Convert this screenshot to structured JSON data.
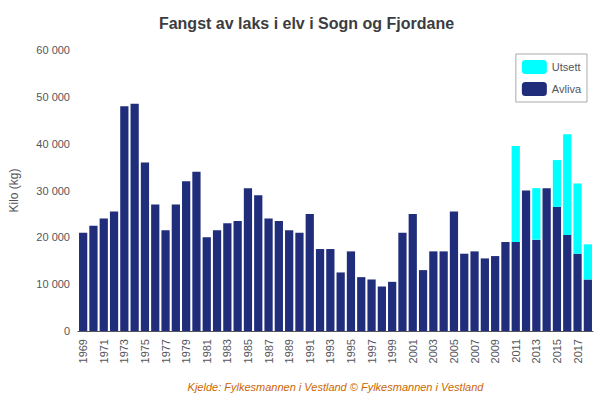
{
  "chart_data": {
    "type": "bar",
    "title": "Fangst av laks i elv i Sogn og Fjordane",
    "ylabel": "Kilo (kg)",
    "xlabel": "Kjelde: Fylkesmannen i Vestland © Fylkesmannen i Vestland",
    "categories": [
      "1969",
      null,
      "1971",
      null,
      "1973",
      null,
      "1975",
      null,
      "1977",
      null,
      "1979",
      null,
      "1981",
      null,
      "1983",
      null,
      "1985",
      null,
      "1987",
      null,
      "1989",
      null,
      "1991",
      null,
      "1993",
      null,
      "1995",
      null,
      "1997",
      null,
      "1999",
      null,
      "2001",
      null,
      "2003",
      null,
      "2005",
      null,
      "2007",
      null,
      "2009",
      null,
      "2011",
      null,
      "2013",
      null,
      "2015",
      null,
      "2017",
      null
    ],
    "series": [
      {
        "name": "Avliva",
        "color": "#1F2D7B",
        "values": [
          21000,
          22500,
          24000,
          25500,
          48000,
          48500,
          36000,
          27000,
          21500,
          27000,
          32000,
          34000,
          20000,
          21500,
          23000,
          23500,
          30500,
          29000,
          24000,
          23500,
          21500,
          21000,
          25000,
          17500,
          17500,
          12500,
          17000,
          11500,
          11000,
          9500,
          10500,
          21000,
          25000,
          13000,
          17000,
          17000,
          25500,
          16500,
          17000,
          15500,
          16000,
          19000,
          19000,
          30000,
          19500,
          30500,
          26500,
          20500,
          16500,
          11000
        ]
      },
      {
        "name": "Utsett",
        "color": "#00FFFF",
        "values": [
          0,
          0,
          0,
          0,
          0,
          0,
          0,
          0,
          0,
          0,
          0,
          0,
          0,
          0,
          0,
          0,
          0,
          0,
          0,
          0,
          0,
          0,
          0,
          0,
          0,
          0,
          0,
          0,
          0,
          0,
          0,
          0,
          0,
          0,
          0,
          0,
          0,
          0,
          0,
          0,
          0,
          0,
          20500,
          0,
          11000,
          0,
          10000,
          21500,
          15000,
          7500
        ]
      }
    ],
    "stacked": true,
    "ylim": [
      0,
      60000
    ],
    "yticks": [
      0,
      {
        "value": 10000,
        "label": "10 000"
      },
      {
        "value": 20000,
        "label": "20 000"
      },
      {
        "value": 30000,
        "label": "30 000"
      },
      {
        "value": 40000,
        "label": "40 000"
      },
      {
        "value": 50000,
        "label": "50 000"
      },
      {
        "value": 60000,
        "label": "60 000"
      }
    ],
    "grid": false,
    "legend": "upper right"
  }
}
